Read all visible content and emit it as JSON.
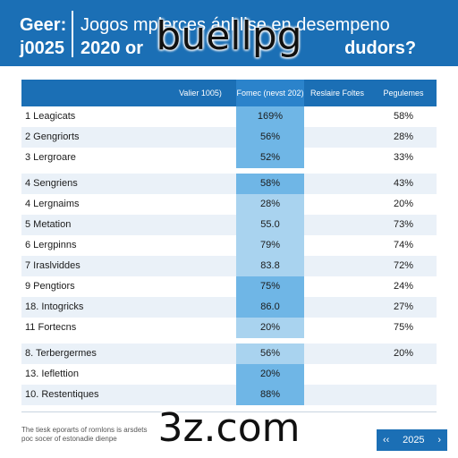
{
  "header": {
    "left_line1": "Geer:",
    "left_line2": "j0025",
    "title_line1": "Jogos mplerces ánl lise en desempeno",
    "title_line2": "2020 or",
    "title_line2_tail": "dudors?"
  },
  "watermark": {
    "top": "buellpg",
    "bottom": "3z.com"
  },
  "table": {
    "columns": {
      "name": "Valier 1005)",
      "score": "Fomec (nevst 202)",
      "fail": "Reslaire Foltes",
      "pct": "Pegulemes"
    },
    "rows": [
      {
        "name": "1  Leagicats",
        "score": "169%",
        "pct": "58%"
      },
      {
        "name": "2  Gengriorts",
        "score": "56%",
        "pct": "28%"
      },
      {
        "name": "3  Lergroare",
        "score": "52%",
        "pct": "33%"
      },
      {
        "name": "4  Sengriens",
        "score": "58%",
        "pct": "43%"
      },
      {
        "name": "4  Lergnaims",
        "score": "28%",
        "pct": "20%"
      },
      {
        "name": "5  Metation",
        "score": "55.0",
        "pct": "73%"
      },
      {
        "name": "6  Lergpinns",
        "score": "79%",
        "pct": "74%"
      },
      {
        "name": "7  Iraslviddes",
        "score": "83.8",
        "pct": "72%"
      },
      {
        "name": "9  Pengtiors",
        "score": "75%",
        "pct": "24%"
      },
      {
        "name": "18. Intogricks",
        "score": "86.0",
        "pct": "27%"
      },
      {
        "name": "11  Fortecns",
        "score": "20%",
        "pct": "75%"
      },
      {
        "name": "8.  Terbergermes",
        "score": "56%",
        "pct": "20%"
      },
      {
        "name": "13.  Ieflettion",
        "score": "20%",
        "pct": ""
      },
      {
        "name": "10. Restentiques",
        "score": "88%",
        "pct": ""
      }
    ]
  },
  "footnote": {
    "line1": "The tiesk eporarts of rornlons is arsdets",
    "line2": "poc socer of estonadie dienpe"
  },
  "pagination": {
    "prev": "‹‹",
    "label": "2025",
    "next": "›"
  }
}
